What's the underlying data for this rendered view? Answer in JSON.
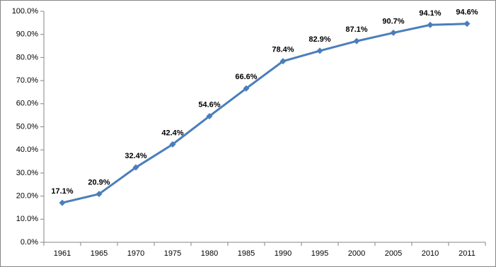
{
  "chart_data": {
    "type": "line",
    "categories": [
      "1961",
      "1965",
      "1970",
      "1975",
      "1980",
      "1985",
      "1990",
      "1995",
      "2000",
      "2005",
      "2010",
      "2011"
    ],
    "series": [
      {
        "color": "#4a7ebb",
        "values": [
          17.1,
          20.9,
          32.4,
          42.4,
          54.6,
          66.6,
          78.4,
          82.9,
          87.1,
          90.7,
          94.1,
          94.6
        ],
        "value_labels": [
          "17.1%",
          "20.9%",
          "32.4%",
          "42.4%",
          "54.6%",
          "66.6%",
          "78.4%",
          "82.9%",
          "87.1%",
          "90.7%",
          "94.1%",
          "94.6%"
        ]
      }
    ],
    "ylim": [
      0,
      100
    ],
    "yticks": [
      {
        "value": 0,
        "label": "0.0%"
      },
      {
        "value": 10,
        "label": "10.0%"
      },
      {
        "value": 20,
        "label": "20.0%"
      },
      {
        "value": 30,
        "label": "30.0%"
      },
      {
        "value": 40,
        "label": "40.0%"
      },
      {
        "value": 50,
        "label": "50.0%"
      },
      {
        "value": 60,
        "label": "60.0%"
      },
      {
        "value": 70,
        "label": "70.0%"
      },
      {
        "value": 80,
        "label": "80.0%"
      },
      {
        "value": 90,
        "label": "90.0%"
      },
      {
        "value": 100,
        "label": "100.0%"
      }
    ],
    "grid": false
  }
}
